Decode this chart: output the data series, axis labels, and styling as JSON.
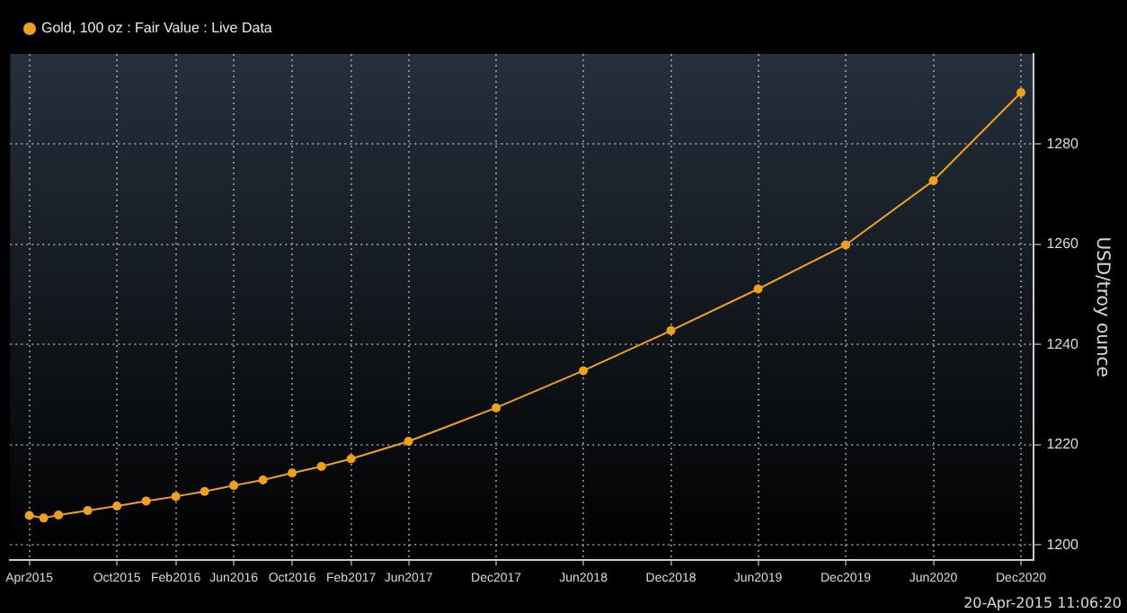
{
  "chart_data": {
    "type": "line",
    "legend": "top left",
    "marker": "circle",
    "line_style": "solid",
    "grid": true,
    "ylabel": "USD/troy ounce",
    "annotations": [
      "20-Apr-2015 11:06:20"
    ],
    "xlim": [
      "2015-02-20",
      "2020-12-28"
    ],
    "xticks": [
      {
        "value": "2015-04",
        "label": "Apr2015"
      },
      {
        "value": "2015-10",
        "label": "Oct2015"
      },
      {
        "value": "2016-02",
        "label": "Feb2016"
      },
      {
        "value": "2016-06",
        "label": "Jun2016"
      },
      {
        "value": "2016-10",
        "label": "Oct2016"
      },
      {
        "value": "2017-02",
        "label": "Feb2017"
      },
      {
        "value": "2017-06",
        "label": "Jun2017"
      },
      {
        "value": "2017-12",
        "label": "Dec2017"
      },
      {
        "value": "2018-06",
        "label": "Jun2018"
      },
      {
        "value": "2018-12",
        "label": "Dec2018"
      },
      {
        "value": "2019-06",
        "label": "Jun2019"
      },
      {
        "value": "2019-12",
        "label": "Dec2019"
      },
      {
        "value": "2020-06",
        "label": "Jun2020"
      },
      {
        "value": "2020-12",
        "label": "Dec2020"
      }
    ],
    "ylim": [
      1197,
      1298
    ],
    "yticks": [
      1200,
      1220,
      1240,
      1260,
      1280
    ],
    "x": [
      "2015-04",
      "2015-05",
      "2015-06",
      "2015-08",
      "2015-10",
      "2015-12",
      "2016-02",
      "2016-04",
      "2016-06",
      "2016-08",
      "2016-10",
      "2016-12",
      "2017-02",
      "2017-06",
      "2017-12",
      "2018-06",
      "2018-12",
      "2019-06",
      "2019-12",
      "2020-06",
      "2020-12"
    ],
    "series": [
      {
        "name": "Gold, 100 oz : Fair Value : Live Data",
        "color": "#f0a020",
        "values": [
          1205.9,
          1205.4,
          1206.0,
          1206.9,
          1207.8,
          1208.8,
          1209.7,
          1210.7,
          1211.9,
          1213.0,
          1214.4,
          1215.7,
          1217.2,
          1220.7,
          1227.4,
          1234.8,
          1242.8,
          1251.1,
          1259.9,
          1272.7,
          1290.3
        ]
      }
    ]
  }
}
